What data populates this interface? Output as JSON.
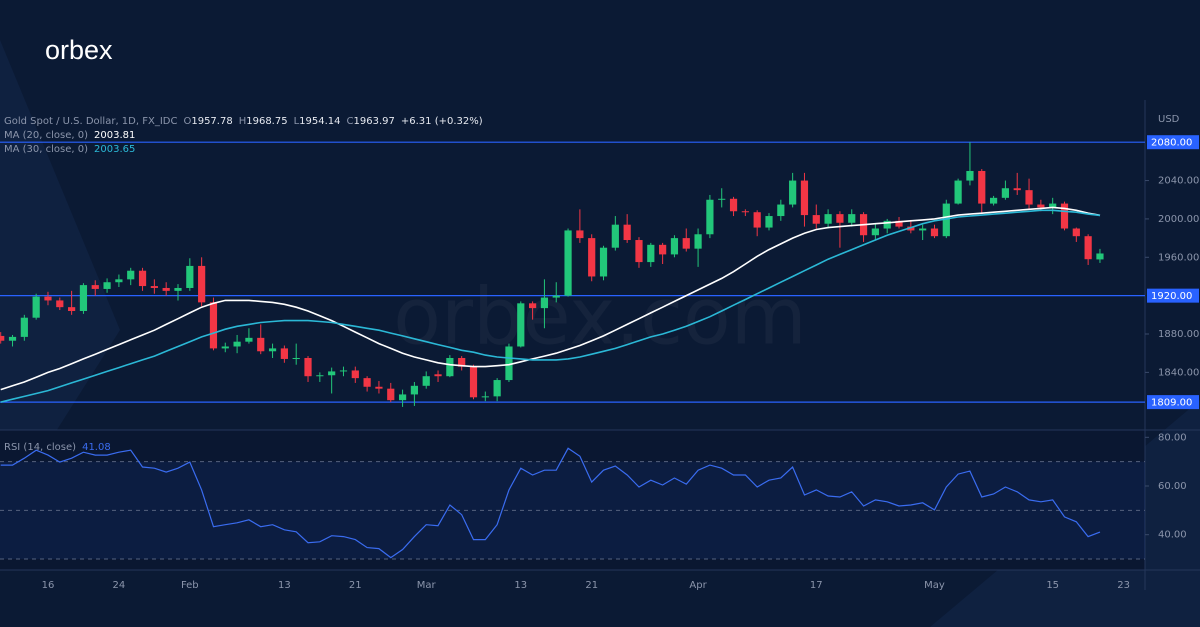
{
  "logo": "orbex",
  "watermark": "orbex.com",
  "chart_data": {
    "type": "candlestick",
    "header": {
      "symbol": "Gold Spot / U.S. Dollar, 1D, FX_IDC",
      "ohlc": [
        {
          "label": "O",
          "value": 1957.78
        },
        {
          "label": "H",
          "value": 1968.75
        },
        {
          "label": "L",
          "value": 1954.14
        },
        {
          "label": "C",
          "value": 1963.97
        }
      ],
      "change": "+6.31 (+0.32%)"
    },
    "unit": "USD",
    "up_color": "#22c77a",
    "down_color": "#f23645",
    "categories": [
      null,
      null,
      null,
      null,
      "16",
      null,
      null,
      null,
      null,
      null,
      "24",
      null,
      null,
      null,
      null,
      null,
      "Feb",
      null,
      null,
      null,
      null,
      null,
      null,
      null,
      "13",
      null,
      null,
      null,
      null,
      null,
      "21",
      null,
      null,
      null,
      null,
      null,
      "Mar",
      null,
      null,
      null,
      null,
      null,
      null,
      null,
      "13",
      null,
      null,
      null,
      null,
      null,
      "21",
      null,
      null,
      null,
      null,
      null,
      null,
      null,
      null,
      "Apr",
      null,
      null,
      null,
      null,
      null,
      null,
      null,
      null,
      null,
      "17",
      null,
      null,
      null,
      null,
      null,
      null,
      null,
      null,
      null,
      "May",
      null,
      null,
      null,
      null,
      null,
      null,
      null,
      null,
      null,
      "15",
      null,
      null,
      null,
      null
    ],
    "future_categories": [
      null,
      "23"
    ],
    "open": [
      1878,
      1873,
      1877,
      1897,
      1919,
      1915,
      1908,
      1904,
      1931,
      1927,
      1934,
      1937,
      1946,
      1930,
      1928,
      1925,
      1928,
      1951,
      1913,
      1865,
      1867,
      1872,
      1876,
      1862,
      1865,
      1854,
      1855,
      1836,
      1837,
      1841,
      1842,
      1834,
      1825,
      1823,
      1811,
      1817,
      1826,
      1838,
      1836,
      1855,
      1846,
      1814,
      1815,
      1832,
      1867,
      1912,
      1907,
      1918,
      1920,
      1988,
      1980,
      1940,
      1970,
      1994,
      1978,
      1955,
      1973,
      1963,
      1980,
      1969,
      1984,
      2020,
      2021,
      2008,
      2007,
      1991,
      2003,
      2015,
      2040,
      2004,
      1995,
      2005,
      1996,
      2005,
      1983,
      1990,
      1998,
      1992,
      1988,
      1990,
      1982,
      2016,
      2040,
      2050,
      2016,
      2022,
      2032,
      2030,
      2015,
      2012,
      2016,
      1990,
      1982,
      1957.78
    ],
    "high": [
      1882,
      1879,
      1900,
      1922,
      1924,
      1918,
      1925,
      1933,
      1936,
      1938,
      1942,
      1949,
      1949,
      1937,
      1934,
      1932,
      1959,
      1960,
      1918,
      1871,
      1879,
      1886,
      1890,
      1870,
      1868,
      1870,
      1857,
      1840,
      1845,
      1846,
      1846,
      1836,
      1831,
      1829,
      1822,
      1830,
      1841,
      1842,
      1858,
      1857,
      1848,
      1820,
      1834,
      1870,
      1914,
      1914,
      1937,
      1934,
      1990,
      2010,
      1984,
      1972,
      2003,
      2005,
      1981,
      1975,
      1975,
      1983,
      1990,
      1990,
      2025,
      2032,
      2023,
      2010,
      2009,
      2006,
      2020,
      2048,
      2048,
      2015,
      2010,
      2008,
      2010,
      2007,
      1995,
      2000,
      2002,
      1999,
      1994,
      1994,
      2020,
      2042,
      2080,
      2052,
      2024,
      2040,
      2048,
      2042,
      2020,
      2022,
      2018,
      1991,
      1984,
      1968.75
    ],
    "low": [
      1870,
      1867,
      1873,
      1895,
      1910,
      1905,
      1900,
      1901,
      1920,
      1923,
      1929,
      1931,
      1925,
      1922,
      1920,
      1915,
      1925,
      1909,
      1863,
      1861,
      1860,
      1870,
      1859,
      1855,
      1850,
      1848,
      1830,
      1830,
      1818,
      1836,
      1829,
      1820,
      1818,
      1809,
      1804,
      1805,
      1823,
      1830,
      1835,
      1842,
      1812,
      1810,
      1810,
      1830,
      1866,
      1895,
      1886,
      1913,
      1919,
      1975,
      1935,
      1936,
      1967,
      1975,
      1949,
      1950,
      1953,
      1960,
      1966,
      1950,
      1980,
      2012,
      2003,
      2003,
      1982,
      1988,
      1998,
      2012,
      1992,
      1990,
      1990,
      1970,
      1992,
      1976,
      1978,
      1985,
      1990,
      1985,
      1978,
      1980,
      1980,
      2015,
      2035,
      2005,
      2014,
      2020,
      2025,
      2010,
      2008,
      2005,
      1988,
      1976,
      1952,
      1954.14
    ],
    "close": [
      1873,
      1877,
      1897,
      1919,
      1915,
      1908,
      1904,
      1931,
      1927,
      1934,
      1937,
      1946,
      1930,
      1928,
      1925,
      1928,
      1951,
      1913,
      1865,
      1867,
      1872,
      1876,
      1862,
      1865,
      1854,
      1855,
      1836,
      1837,
      1841,
      1842,
      1834,
      1825,
      1823,
      1811,
      1817,
      1826,
      1836,
      1836,
      1855,
      1846,
      1814,
      1815,
      1832,
      1867,
      1912,
      1907,
      1918,
      1920,
      1988,
      1980,
      1940,
      1970,
      1994,
      1978,
      1955,
      1973,
      1963,
      1980,
      1969,
      1984,
      2020,
      2021,
      2008,
      2007,
      1991,
      2003,
      2015,
      2040,
      2004,
      1995,
      2005,
      1996,
      2005,
      1983,
      1990,
      1998,
      1992,
      1988,
      1990,
      1982,
      2016,
      2040,
      2050,
      2016,
      2022,
      2032,
      2030,
      2015,
      2012,
      2016,
      1990,
      1982,
      1958,
      1963.97
    ],
    "series": [
      {
        "name": "MA (20, close, 0)",
        "color": "#ffffff",
        "last": 2003.81,
        "values": [
          1822,
          1826,
          1830,
          1835,
          1840,
          1844,
          1849,
          1854,
          1859,
          1864,
          1869,
          1874,
          1879,
          1884,
          1890,
          1896,
          1902,
          1908,
          1912,
          1915,
          1915,
          1915,
          1914,
          1913,
          1911,
          1908,
          1904,
          1899,
          1894,
          1888,
          1882,
          1876,
          1870,
          1865,
          1860,
          1856,
          1853,
          1850,
          1848,
          1847,
          1846,
          1846,
          1847,
          1848,
          1851,
          1854,
          1857,
          1860,
          1864,
          1868,
          1873,
          1878,
          1884,
          1890,
          1896,
          1902,
          1908,
          1914,
          1920,
          1926,
          1932,
          1938,
          1945,
          1953,
          1961,
          1968,
          1974,
          1980,
          1985,
          1989,
          1991,
          1992,
          1993,
          1994,
          1995,
          1996,
          1997,
          1998,
          1999,
          2000,
          2002,
          2004,
          2005,
          2006,
          2007,
          2008,
          2009,
          2010,
          2011,
          2012,
          2011,
          2009,
          2006,
          2003.81
        ]
      },
      {
        "name": "MA (30, close, 0)",
        "color": "#2bb8d6",
        "last": 2003.65,
        "values": [
          1809,
          1812,
          1815,
          1818,
          1821,
          1825,
          1829,
          1833,
          1837,
          1841,
          1845,
          1849,
          1853,
          1857,
          1862,
          1867,
          1872,
          1877,
          1881,
          1885,
          1888,
          1890,
          1892,
          1893,
          1894,
          1894,
          1894,
          1893,
          1892,
          1890,
          1888,
          1886,
          1884,
          1881,
          1878,
          1875,
          1872,
          1869,
          1866,
          1863,
          1861,
          1858,
          1856,
          1855,
          1854,
          1853,
          1853,
          1853,
          1854,
          1856,
          1859,
          1862,
          1865,
          1869,
          1873,
          1877,
          1880,
          1884,
          1888,
          1893,
          1898,
          1904,
          1910,
          1916,
          1922,
          1928,
          1934,
          1940,
          1946,
          1952,
          1958,
          1963,
          1968,
          1973,
          1978,
          1983,
          1987,
          1991,
          1995,
          1998,
          2000,
          2002,
          2003,
          2004,
          2005,
          2006,
          2007,
          2008,
          2009,
          2009,
          2008,
          2007,
          2005,
          2003.65
        ]
      }
    ],
    "ylim": [
      1782,
      2124
    ],
    "yticks": [
      {
        "value": 1840,
        "label": "1840.00"
      },
      {
        "value": 1880,
        "label": "1880.00"
      },
      {
        "value": 1960,
        "label": "1960.00"
      },
      {
        "value": 2000,
        "label": "2000.00"
      },
      {
        "value": 2040,
        "label": "2040.00"
      }
    ],
    "levels": [
      {
        "value": 2080,
        "label": "2080.00"
      },
      {
        "value": 1920,
        "label": "1920.00"
      },
      {
        "value": 1809,
        "label": "1809.00"
      }
    ],
    "level_color": "#2962ff",
    "rsi": {
      "name": "RSI (14, close)",
      "color": "#3a6cf0",
      "last": 41.08,
      "values": [
        68.6,
        68.6,
        71.4,
        74.7,
        72.7,
        69.8,
        71.4,
        73.9,
        72.7,
        72.7,
        73.9,
        74.7,
        67.8,
        67.3,
        65.7,
        67.3,
        69.8,
        58.4,
        43.3,
        44.1,
        44.9,
        46.1,
        43.3,
        44.1,
        42.0,
        41.2,
        36.7,
        37.1,
        39.6,
        39.2,
        38.0,
        34.7,
        34.3,
        30.6,
        33.9,
        39.2,
        44.1,
        43.7,
        52.2,
        48.2,
        38.0,
        38.0,
        44.1,
        58.4,
        67.3,
        64.5,
        66.5,
        66.5,
        75.5,
        72.2,
        61.6,
        66.5,
        68.2,
        64.5,
        59.6,
        62.4,
        60.4,
        63.3,
        60.8,
        66.5,
        68.6,
        67.3,
        64.5,
        64.5,
        59.6,
        62.4,
        63.3,
        67.8,
        56.3,
        58.4,
        55.9,
        55.5,
        57.6,
        51.8,
        54.3,
        53.5,
        51.8,
        52.2,
        53.1,
        50.2,
        59.6,
        64.9,
        66.1,
        55.5,
        56.7,
        59.6,
        57.6,
        54.3,
        53.5,
        54.3,
        47.3,
        45.3,
        39.2,
        41.08
      ],
      "ylim": [
        25.5,
        83
      ],
      "yticks": [
        {
          "value": 40,
          "label": "40.00"
        },
        {
          "value": 60,
          "label": "60.00"
        },
        {
          "value": 80,
          "label": "80.00"
        }
      ],
      "levels": [
        30,
        50,
        70
      ]
    }
  }
}
